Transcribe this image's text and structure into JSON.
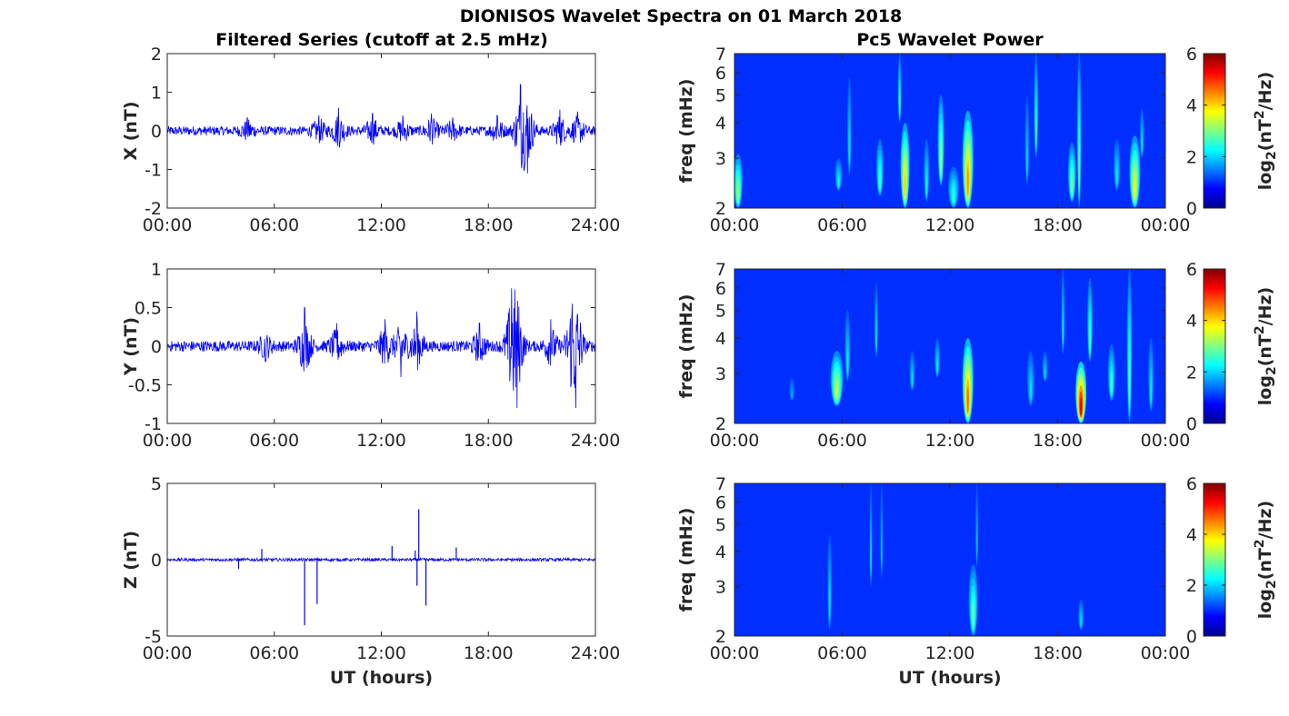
{
  "figure": {
    "title": "DIONISOS Wavelet Spectra on 01 March 2018",
    "left_title": "Filtered Series (cutoff at 2.5 mHz)",
    "right_title": "Pc5 Wavelet Power",
    "xlabel": "UT (hours)"
  },
  "chart_data": [
    {
      "type": "line",
      "panel": "X",
      "ylabel": "X (nT)",
      "ylim": [
        -2,
        2
      ],
      "yticks": [
        "-2",
        "-1",
        "0",
        "1",
        "2"
      ],
      "xlim_hours": [
        0,
        24
      ],
      "xticks": [
        "00:00",
        "06:00",
        "12:00",
        "18:00",
        "24:00"
      ],
      "color": "#0000ff",
      "baseline_amplitude": 0.12,
      "bursts": [
        {
          "t": 4.5,
          "amp": 0.35
        },
        {
          "t": 8.5,
          "amp": 0.4
        },
        {
          "t": 9.6,
          "amp": 0.6
        },
        {
          "t": 11.5,
          "amp": 0.45
        },
        {
          "t": 13.2,
          "amp": 0.4
        },
        {
          "t": 14.8,
          "amp": 0.45
        },
        {
          "t": 16.0,
          "amp": 0.35
        },
        {
          "t": 18.5,
          "amp": 0.4
        },
        {
          "t": 19.8,
          "amp": 1.2
        },
        {
          "t": 20.2,
          "amp": -1.1
        },
        {
          "t": 22.0,
          "amp": 0.55
        },
        {
          "t": 23.0,
          "amp": 0.5
        }
      ],
      "peaks": {
        "max": 1.2,
        "min": -1.1
      }
    },
    {
      "type": "line",
      "panel": "Y",
      "ylabel": "Y (nT)",
      "ylim": [
        -1,
        1
      ],
      "yticks": [
        "-1",
        "-0.5",
        "0",
        "0.5",
        "1"
      ],
      "xlim_hours": [
        0,
        24
      ],
      "xticks": [
        "00:00",
        "06:00",
        "12:00",
        "18:00",
        "24:00"
      ],
      "color": "#0000ff",
      "baseline_amplitude": 0.07,
      "bursts": [
        {
          "t": 5.5,
          "amp": -0.2
        },
        {
          "t": 7.7,
          "amp": 0.5
        },
        {
          "t": 9.5,
          "amp": 0.3
        },
        {
          "t": 12.2,
          "amp": 0.35
        },
        {
          "t": 13.1,
          "amp": -0.4
        },
        {
          "t": 14.0,
          "amp": 0.45
        },
        {
          "t": 17.5,
          "amp": 0.3
        },
        {
          "t": 19.3,
          "amp": 0.75
        },
        {
          "t": 19.6,
          "amp": -0.8
        },
        {
          "t": 21.5,
          "amp": 0.35
        },
        {
          "t": 22.7,
          "amp": 0.55
        },
        {
          "t": 22.9,
          "amp": -0.8
        }
      ],
      "peaks": {
        "max": 0.75,
        "min": -0.8
      }
    },
    {
      "type": "line",
      "panel": "Z",
      "ylabel": "Z (nT)",
      "ylim": [
        -5,
        5
      ],
      "yticks": [
        "-5",
        "0",
        "5"
      ],
      "xlim_hours": [
        0,
        24
      ],
      "xticks": [
        "00:00",
        "06:00",
        "12:00",
        "18:00",
        "24:00"
      ],
      "color": "#0000ff",
      "baseline_amplitude": 0.1,
      "spikes": [
        {
          "t": 4.0,
          "v": -0.6
        },
        {
          "t": 5.3,
          "v": 0.7
        },
        {
          "t": 7.7,
          "v": -4.3
        },
        {
          "t": 8.4,
          "v": -2.9
        },
        {
          "t": 12.6,
          "v": 0.9
        },
        {
          "t": 13.9,
          "v": 0.6
        },
        {
          "t": 14.1,
          "v": 3.3
        },
        {
          "t": 14.0,
          "v": -1.7
        },
        {
          "t": 14.5,
          "v": -3.0
        },
        {
          "t": 16.2,
          "v": 0.8
        }
      ],
      "peaks": {
        "max": 3.3,
        "min": -4.3
      }
    },
    {
      "type": "heatmap",
      "panel": "X",
      "ylabel": "freq (mHz)",
      "yticks": [
        "2",
        "3",
        "4",
        "5",
        "6",
        "7"
      ],
      "ylim_mHz": [
        2,
        7
      ],
      "yscale": "log",
      "xlim_hours": [
        0,
        24
      ],
      "xticks": [
        "00:00",
        "06:00",
        "12:00",
        "18:00",
        "00:00"
      ],
      "colormap": "jet",
      "colorbar_label": "log2(nT^2/Hz)",
      "clim": [
        0,
        6
      ],
      "colorbar_ticks": [
        "0",
        "2",
        "4",
        "6"
      ],
      "features": [
        {
          "t": 0.2,
          "f_lo": 2.0,
          "f_hi": 3.1,
          "peak": 2.6,
          "width": 0.25
        },
        {
          "t": 5.8,
          "f_lo": 2.3,
          "f_hi": 3.0,
          "peak": 1.5,
          "width": 0.2
        },
        {
          "t": 6.4,
          "f_lo": 2.6,
          "f_hi": 5.8,
          "peak": 1.3,
          "width": 0.12
        },
        {
          "t": 8.1,
          "f_lo": 2.2,
          "f_hi": 3.5,
          "peak": 2.0,
          "width": 0.2
        },
        {
          "t": 9.5,
          "f_lo": 2.0,
          "f_hi": 4.0,
          "peak": 3.7,
          "width": 0.25
        },
        {
          "t": 9.2,
          "f_lo": 4.0,
          "f_hi": 7.0,
          "peak": 1.8,
          "width": 0.1
        },
        {
          "t": 10.7,
          "f_lo": 2.1,
          "f_hi": 3.5,
          "peak": 1.5,
          "width": 0.15
        },
        {
          "t": 11.5,
          "f_lo": 2.4,
          "f_hi": 5.0,
          "peak": 2.6,
          "width": 0.18
        },
        {
          "t": 12.2,
          "f_lo": 2.0,
          "f_hi": 2.8,
          "peak": 1.8,
          "width": 0.3
        },
        {
          "t": 13.0,
          "f_lo": 2.0,
          "f_hi": 4.4,
          "peak": 4.1,
          "width": 0.3
        },
        {
          "t": 16.3,
          "f_lo": 2.4,
          "f_hi": 5.0,
          "peak": 1.2,
          "width": 0.12
        },
        {
          "t": 16.8,
          "f_lo": 3.0,
          "f_hi": 7.0,
          "peak": 1.8,
          "width": 0.12
        },
        {
          "t": 18.8,
          "f_lo": 2.1,
          "f_hi": 3.4,
          "peak": 2.4,
          "width": 0.22
        },
        {
          "t": 19.2,
          "f_lo": 2.0,
          "f_hi": 7.0,
          "peak": 2.0,
          "width": 0.12
        },
        {
          "t": 21.3,
          "f_lo": 2.3,
          "f_hi": 3.5,
          "peak": 1.4,
          "width": 0.18
        },
        {
          "t": 22.3,
          "f_lo": 2.0,
          "f_hi": 3.6,
          "peak": 3.3,
          "width": 0.3
        },
        {
          "t": 22.7,
          "f_lo": 3.0,
          "f_hi": 4.5,
          "peak": 1.3,
          "width": 0.12
        }
      ]
    },
    {
      "type": "heatmap",
      "panel": "Y",
      "ylabel": "freq (mHz)",
      "yticks": [
        "2",
        "3",
        "4",
        "5",
        "6",
        "7"
      ],
      "ylim_mHz": [
        2,
        7
      ],
      "yscale": "log",
      "xlim_hours": [
        0,
        24
      ],
      "xticks": [
        "00:00",
        "06:00",
        "12:00",
        "18:00",
        "00:00"
      ],
      "colormap": "jet",
      "colorbar_label": "log2(nT^2/Hz)",
      "clim": [
        0,
        6
      ],
      "colorbar_ticks": [
        "0",
        "2",
        "4",
        "6"
      ],
      "features": [
        {
          "t": 3.2,
          "f_lo": 2.4,
          "f_hi": 2.9,
          "peak": 0.9,
          "width": 0.15
        },
        {
          "t": 5.7,
          "f_lo": 2.3,
          "f_hi": 3.6,
          "peak": 2.9,
          "width": 0.35
        },
        {
          "t": 6.3,
          "f_lo": 2.8,
          "f_hi": 5.0,
          "peak": 1.4,
          "width": 0.15
        },
        {
          "t": 7.9,
          "f_lo": 3.4,
          "f_hi": 6.3,
          "peak": 1.3,
          "width": 0.1
        },
        {
          "t": 9.9,
          "f_lo": 2.6,
          "f_hi": 3.6,
          "peak": 1.3,
          "width": 0.15
        },
        {
          "t": 11.3,
          "f_lo": 2.9,
          "f_hi": 4.0,
          "peak": 1.4,
          "width": 0.15
        },
        {
          "t": 13.0,
          "f_lo": 2.0,
          "f_hi": 4.0,
          "peak": 4.4,
          "width": 0.3
        },
        {
          "t": 16.5,
          "f_lo": 2.3,
          "f_hi": 3.6,
          "peak": 1.3,
          "width": 0.2
        },
        {
          "t": 17.3,
          "f_lo": 2.8,
          "f_hi": 3.6,
          "peak": 1.2,
          "width": 0.15
        },
        {
          "t": 18.3,
          "f_lo": 3.5,
          "f_hi": 7.0,
          "peak": 1.3,
          "width": 0.1
        },
        {
          "t": 19.3,
          "f_lo": 2.0,
          "f_hi": 3.3,
          "peak": 5.4,
          "width": 0.3
        },
        {
          "t": 19.8,
          "f_lo": 3.3,
          "f_hi": 6.5,
          "peak": 2.0,
          "width": 0.15
        },
        {
          "t": 21.0,
          "f_lo": 2.4,
          "f_hi": 3.8,
          "peak": 1.9,
          "width": 0.2
        },
        {
          "t": 22.0,
          "f_lo": 2.0,
          "f_hi": 7.0,
          "peak": 2.0,
          "width": 0.14
        },
        {
          "t": 23.2,
          "f_lo": 2.2,
          "f_hi": 4.0,
          "peak": 1.4,
          "width": 0.15
        }
      ]
    },
    {
      "type": "heatmap",
      "panel": "Z",
      "ylabel": "freq (mHz)",
      "yticks": [
        "2",
        "3",
        "4",
        "5",
        "6",
        "7"
      ],
      "ylim_mHz": [
        2,
        7
      ],
      "yscale": "log",
      "xlim_hours": [
        0,
        24
      ],
      "xticks": [
        "00:00",
        "06:00",
        "12:00",
        "18:00",
        "00:00"
      ],
      "colormap": "jet",
      "colorbar_label": "log2(nT^2/Hz)",
      "clim": [
        0,
        6
      ],
      "colorbar_ticks": [
        "0",
        "2",
        "4",
        "6"
      ],
      "features": [
        {
          "t": 5.3,
          "f_lo": 2.1,
          "f_hi": 4.6,
          "peak": 1.3,
          "width": 0.12
        },
        {
          "t": 7.6,
          "f_lo": 3.0,
          "f_hi": 7.0,
          "peak": 1.2,
          "width": 0.08
        },
        {
          "t": 8.2,
          "f_lo": 3.2,
          "f_hi": 7.0,
          "peak": 1.0,
          "width": 0.08
        },
        {
          "t": 13.3,
          "f_lo": 2.0,
          "f_hi": 3.6,
          "peak": 2.2,
          "width": 0.25
        },
        {
          "t": 13.5,
          "f_lo": 3.5,
          "f_hi": 7.0,
          "peak": 1.0,
          "width": 0.08
        },
        {
          "t": 19.3,
          "f_lo": 2.1,
          "f_hi": 2.7,
          "peak": 1.3,
          "width": 0.15
        }
      ]
    }
  ]
}
